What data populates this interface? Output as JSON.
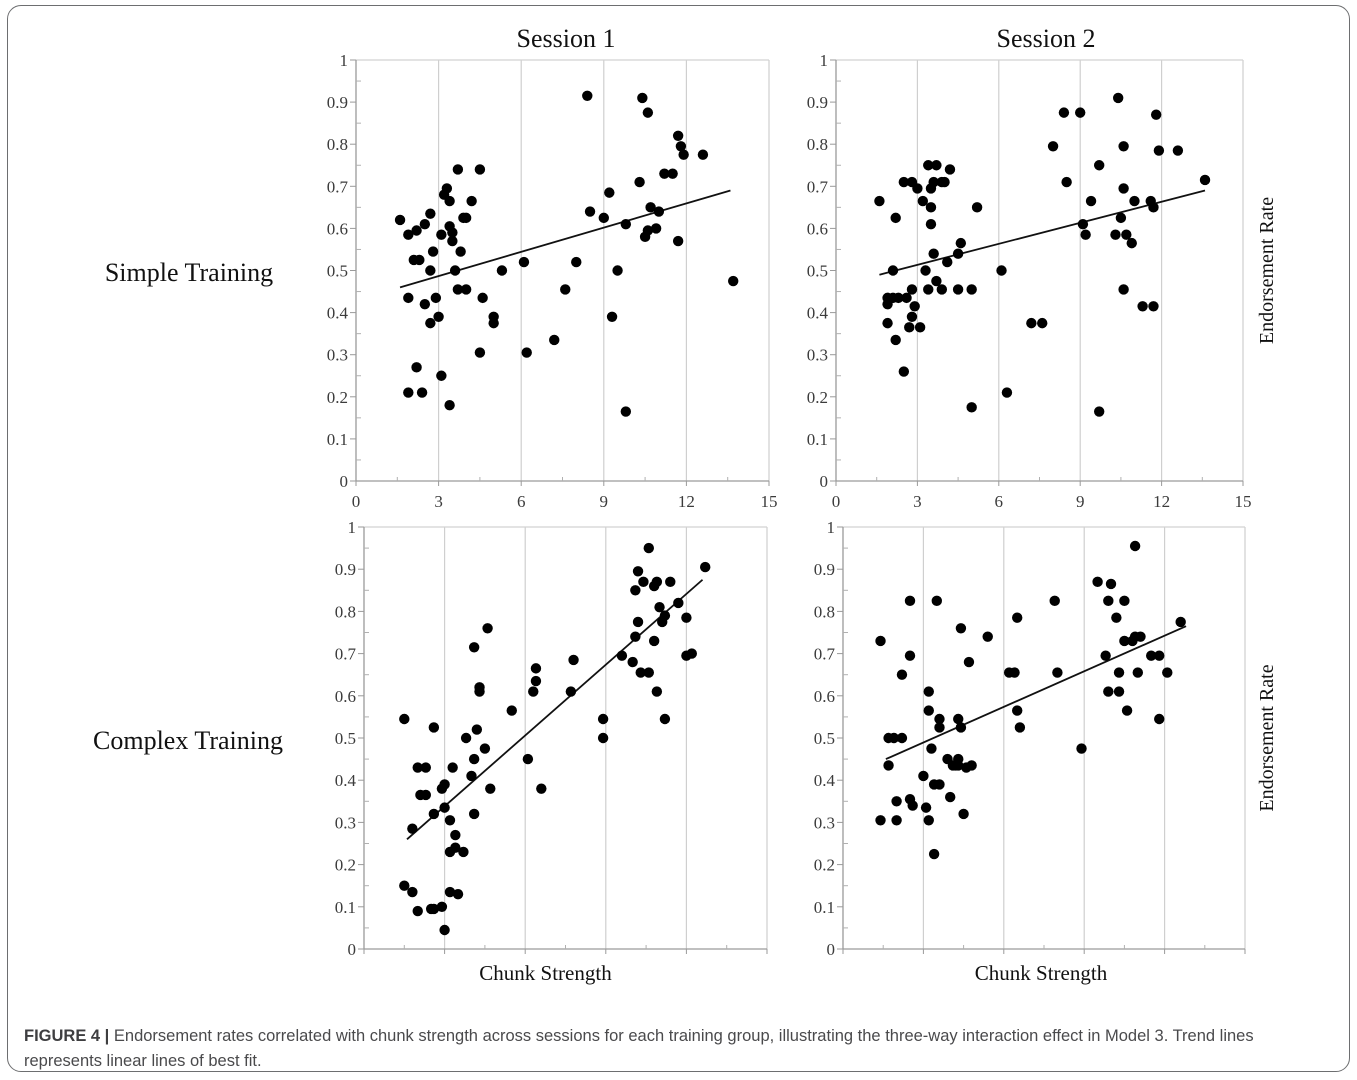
{
  "figure": {
    "columns": [
      "Session 1",
      "Session 2"
    ],
    "rows": [
      "Simple Training",
      "Complex Training"
    ],
    "caption_label": "FIGURE 4 |",
    "caption_text": " Endorsement rates correlated with chunk strength across sessions for each training group, illustrating the three-way interaction effect in Model 3. Trend lines represents linear lines of best fit."
  },
  "chart_data": [
    {
      "type": "scatter",
      "panel": "Simple Training / Session 1",
      "title": "Session 1",
      "xlabel": "",
      "ylabel": "",
      "row_label": "Simple Training",
      "xlim": [
        0,
        15
      ],
      "ylim": [
        0,
        1
      ],
      "xticks": [
        "0",
        "3",
        "6",
        "9",
        "12",
        "15"
      ],
      "yticks": [
        "0",
        "0.1",
        "0.2",
        "0.3",
        "0.4",
        "0.5",
        "0.6",
        "0.7",
        "0.8",
        "0.9",
        "1"
      ],
      "grid": true,
      "trendline": [
        [
          1.6,
          0.46
        ],
        [
          13.6,
          0.69
        ]
      ],
      "points": [
        [
          1.6,
          0.62
        ],
        [
          1.9,
          0.585
        ],
        [
          2.1,
          0.525
        ],
        [
          2.2,
          0.595
        ],
        [
          2.3,
          0.525
        ],
        [
          2.5,
          0.61
        ],
        [
          2.7,
          0.5
        ],
        [
          2.7,
          0.635
        ],
        [
          2.8,
          0.545
        ],
        [
          1.9,
          0.435
        ],
        [
          2.5,
          0.42
        ],
        [
          2.9,
          0.435
        ],
        [
          2.7,
          0.375
        ],
        [
          3.0,
          0.39
        ],
        [
          2.2,
          0.27
        ],
        [
          1.9,
          0.21
        ],
        [
          2.4,
          0.21
        ],
        [
          3.1,
          0.25
        ],
        [
          3.4,
          0.18
        ],
        [
          3.1,
          0.585
        ],
        [
          3.2,
          0.68
        ],
        [
          3.3,
          0.695
        ],
        [
          3.4,
          0.605
        ],
        [
          3.4,
          0.665
        ],
        [
          3.5,
          0.57
        ],
        [
          3.5,
          0.59
        ],
        [
          3.6,
          0.5
        ],
        [
          3.7,
          0.74
        ],
        [
          3.7,
          0.455
        ],
        [
          3.8,
          0.545
        ],
        [
          3.9,
          0.625
        ],
        [
          4.0,
          0.625
        ],
        [
          4.0,
          0.455
        ],
        [
          4.2,
          0.665
        ],
        [
          4.5,
          0.74
        ],
        [
          4.6,
          0.435
        ],
        [
          4.5,
          0.305
        ],
        [
          5.0,
          0.39
        ],
        [
          5.0,
          0.375
        ],
        [
          5.3,
          0.5
        ],
        [
          6.1,
          0.52
        ],
        [
          6.2,
          0.305
        ],
        [
          7.2,
          0.335
        ],
        [
          7.6,
          0.455
        ],
        [
          8.0,
          0.52
        ],
        [
          8.4,
          0.915
        ],
        [
          8.5,
          0.64
        ],
        [
          9.0,
          0.625
        ],
        [
          9.2,
          0.685
        ],
        [
          9.3,
          0.39
        ],
        [
          9.5,
          0.5
        ],
        [
          9.8,
          0.61
        ],
        [
          9.8,
          0.165
        ],
        [
          10.3,
          0.71
        ],
        [
          10.4,
          0.91
        ],
        [
          10.5,
          0.58
        ],
        [
          10.6,
          0.595
        ],
        [
          10.6,
          0.875
        ],
        [
          10.7,
          0.65
        ],
        [
          10.9,
          0.6
        ],
        [
          11.0,
          0.64
        ],
        [
          11.2,
          0.73
        ],
        [
          11.5,
          0.73
        ],
        [
          11.7,
          0.82
        ],
        [
          11.8,
          0.795
        ],
        [
          11.9,
          0.775
        ],
        [
          12.6,
          0.775
        ],
        [
          11.7,
          0.57
        ],
        [
          13.7,
          0.475
        ]
      ]
    },
    {
      "type": "scatter",
      "panel": "Simple Training / Session 2",
      "title": "Session 2",
      "xlabel": "",
      "ylabel": "Endorsement Rate",
      "xlim": [
        0,
        15
      ],
      "ylim": [
        0,
        1
      ],
      "xticks": [
        "0",
        "3",
        "6",
        "9",
        "12",
        "15"
      ],
      "yticks": [
        "0",
        "0.1",
        "0.2",
        "0.3",
        "0.4",
        "0.5",
        "0.6",
        "0.7",
        "0.8",
        "0.9",
        "1"
      ],
      "grid": true,
      "trendline": [
        [
          1.6,
          0.49
        ],
        [
          13.6,
          0.69
        ]
      ],
      "points": [
        [
          1.6,
          0.665
        ],
        [
          2.2,
          0.625
        ],
        [
          2.5,
          0.71
        ],
        [
          2.8,
          0.71
        ],
        [
          3.0,
          0.695
        ],
        [
          3.2,
          0.665
        ],
        [
          3.4,
          0.75
        ],
        [
          3.5,
          0.695
        ],
        [
          3.6,
          0.71
        ],
        [
          3.7,
          0.75
        ],
        [
          3.9,
          0.71
        ],
        [
          4.0,
          0.71
        ],
        [
          4.2,
          0.74
        ],
        [
          3.5,
          0.61
        ],
        [
          3.5,
          0.65
        ],
        [
          3.6,
          0.54
        ],
        [
          3.9,
          0.455
        ],
        [
          3.7,
          0.475
        ],
        [
          4.1,
          0.52
        ],
        [
          4.5,
          0.54
        ],
        [
          4.6,
          0.565
        ],
        [
          4.5,
          0.455
        ],
        [
          5.0,
          0.455
        ],
        [
          5.2,
          0.65
        ],
        [
          3.3,
          0.5
        ],
        [
          1.9,
          0.435
        ],
        [
          2.1,
          0.435
        ],
        [
          1.9,
          0.42
        ],
        [
          2.1,
          0.5
        ],
        [
          2.3,
          0.435
        ],
        [
          2.6,
          0.435
        ],
        [
          2.8,
          0.455
        ],
        [
          2.9,
          0.415
        ],
        [
          2.8,
          0.39
        ],
        [
          1.9,
          0.375
        ],
        [
          2.2,
          0.335
        ],
        [
          2.7,
          0.365
        ],
        [
          3.1,
          0.365
        ],
        [
          2.5,
          0.26
        ],
        [
          3.4,
          0.455
        ],
        [
          5.0,
          0.175
        ],
        [
          6.1,
          0.5
        ],
        [
          6.3,
          0.21
        ],
        [
          7.2,
          0.375
        ],
        [
          7.6,
          0.375
        ],
        [
          8.0,
          0.795
        ],
        [
          8.4,
          0.875
        ],
        [
          8.5,
          0.71
        ],
        [
          9.0,
          0.875
        ],
        [
          9.1,
          0.61
        ],
        [
          9.2,
          0.585
        ],
        [
          9.4,
          0.665
        ],
        [
          9.7,
          0.75
        ],
        [
          9.7,
          0.165
        ],
        [
          10.3,
          0.585
        ],
        [
          10.4,
          0.91
        ],
        [
          10.5,
          0.625
        ],
        [
          10.6,
          0.795
        ],
        [
          10.6,
          0.695
        ],
        [
          10.6,
          0.455
        ],
        [
          10.7,
          0.585
        ],
        [
          10.9,
          0.565
        ],
        [
          11.0,
          0.665
        ],
        [
          11.3,
          0.415
        ],
        [
          11.6,
          0.665
        ],
        [
          11.7,
          0.65
        ],
        [
          11.7,
          0.415
        ],
        [
          11.8,
          0.87
        ],
        [
          11.9,
          0.785
        ],
        [
          12.6,
          0.785
        ],
        [
          13.6,
          0.715
        ]
      ]
    },
    {
      "type": "scatter",
      "panel": "Complex Training / Session 1",
      "title": "",
      "xlabel": "Chunk Strength",
      "ylabel": "",
      "row_label": "Complex Training",
      "xlim": [
        0,
        15
      ],
      "ylim": [
        0,
        1
      ],
      "xticks": [],
      "yticks": [
        "0",
        "0.1",
        "0.2",
        "0.3",
        "0.4",
        "0.5",
        "0.6",
        "0.7",
        "0.8",
        "0.9",
        "1"
      ],
      "grid": true,
      "trendline": [
        [
          1.6,
          0.26
        ],
        [
          12.6,
          0.875
        ]
      ],
      "points": [
        [
          1.5,
          0.545
        ],
        [
          1.5,
          0.15
        ],
        [
          1.8,
          0.135
        ],
        [
          1.8,
          0.285
        ],
        [
          2.0,
          0.43
        ],
        [
          2.1,
          0.365
        ],
        [
          2.3,
          0.43
        ],
        [
          2.3,
          0.365
        ],
        [
          2.0,
          0.09
        ],
        [
          2.5,
          0.095
        ],
        [
          2.6,
          0.095
        ],
        [
          2.6,
          0.32
        ],
        [
          2.6,
          0.525
        ],
        [
          2.9,
          0.1
        ],
        [
          2.9,
          0.38
        ],
        [
          3.0,
          0.39
        ],
        [
          3.0,
          0.335
        ],
        [
          3.0,
          0.045
        ],
        [
          3.2,
          0.305
        ],
        [
          3.2,
          0.23
        ],
        [
          3.2,
          0.135
        ],
        [
          3.3,
          0.43
        ],
        [
          3.4,
          0.27
        ],
        [
          3.4,
          0.24
        ],
        [
          3.5,
          0.13
        ],
        [
          3.7,
          0.23
        ],
        [
          3.8,
          0.5
        ],
        [
          4.0,
          0.41
        ],
        [
          4.1,
          0.32
        ],
        [
          4.1,
          0.45
        ],
        [
          4.2,
          0.52
        ],
        [
          4.3,
          0.62
        ],
        [
          4.3,
          0.61
        ],
        [
          4.1,
          0.715
        ],
        [
          4.5,
          0.475
        ],
        [
          4.6,
          0.76
        ],
        [
          4.7,
          0.38
        ],
        [
          5.5,
          0.565
        ],
        [
          6.1,
          0.45
        ],
        [
          6.3,
          0.61
        ],
        [
          6.4,
          0.665
        ],
        [
          6.4,
          0.635
        ],
        [
          6.6,
          0.38
        ],
        [
          7.7,
          0.61
        ],
        [
          7.8,
          0.685
        ],
        [
          8.9,
          0.545
        ],
        [
          8.9,
          0.5
        ],
        [
          9.6,
          0.695
        ],
        [
          10.0,
          0.68
        ],
        [
          10.1,
          0.74
        ],
        [
          10.1,
          0.85
        ],
        [
          10.2,
          0.775
        ],
        [
          10.2,
          0.895
        ],
        [
          10.3,
          0.655
        ],
        [
          10.4,
          0.87
        ],
        [
          10.6,
          0.95
        ],
        [
          10.6,
          0.655
        ],
        [
          10.8,
          0.73
        ],
        [
          10.8,
          0.86
        ],
        [
          10.9,
          0.87
        ],
        [
          10.9,
          0.61
        ],
        [
          11.0,
          0.81
        ],
        [
          11.1,
          0.775
        ],
        [
          11.2,
          0.545
        ],
        [
          11.2,
          0.79
        ],
        [
          11.4,
          0.87
        ],
        [
          11.7,
          0.82
        ],
        [
          12.0,
          0.785
        ],
        [
          12.0,
          0.695
        ],
        [
          12.2,
          0.7
        ],
        [
          12.7,
          0.905
        ]
      ]
    },
    {
      "type": "scatter",
      "panel": "Complex Training / Session 2",
      "title": "",
      "xlabel": "Chunk Strength",
      "ylabel": "Endorsement Rate",
      "xlim": [
        0,
        15
      ],
      "ylim": [
        0,
        1
      ],
      "xticks": [],
      "yticks": [
        "0",
        "0.1",
        "0.2",
        "0.3",
        "0.4",
        "0.5",
        "0.6",
        "0.7",
        "0.8",
        "0.9",
        "1"
      ],
      "grid": true,
      "trendline": [
        [
          1.6,
          0.45
        ],
        [
          12.8,
          0.765
        ]
      ],
      "points": [
        [
          1.4,
          0.73
        ],
        [
          1.4,
          0.305
        ],
        [
          1.7,
          0.435
        ],
        [
          1.7,
          0.5
        ],
        [
          1.9,
          0.5
        ],
        [
          2.0,
          0.305
        ],
        [
          2.0,
          0.35
        ],
        [
          2.2,
          0.65
        ],
        [
          2.2,
          0.5
        ],
        [
          2.5,
          0.355
        ],
        [
          2.6,
          0.34
        ],
        [
          2.5,
          0.825
        ],
        [
          2.5,
          0.695
        ],
        [
          3.0,
          0.41
        ],
        [
          3.1,
          0.335
        ],
        [
          3.2,
          0.61
        ],
        [
          3.2,
          0.565
        ],
        [
          3.2,
          0.305
        ],
        [
          3.3,
          0.475
        ],
        [
          3.4,
          0.225
        ],
        [
          3.4,
          0.39
        ],
        [
          3.6,
          0.39
        ],
        [
          3.5,
          0.825
        ],
        [
          3.6,
          0.545
        ],
        [
          3.6,
          0.525
        ],
        [
          3.9,
          0.45
        ],
        [
          4.0,
          0.36
        ],
        [
          4.1,
          0.435
        ],
        [
          4.2,
          0.435
        ],
        [
          4.3,
          0.545
        ],
        [
          4.3,
          0.45
        ],
        [
          4.3,
          0.435
        ],
        [
          4.4,
          0.525
        ],
        [
          4.4,
          0.76
        ],
        [
          4.5,
          0.32
        ],
        [
          4.6,
          0.43
        ],
        [
          4.7,
          0.68
        ],
        [
          4.8,
          0.435
        ],
        [
          5.4,
          0.74
        ],
        [
          6.2,
          0.655
        ],
        [
          6.4,
          0.655
        ],
        [
          6.5,
          0.785
        ],
        [
          6.5,
          0.565
        ],
        [
          6.6,
          0.525
        ],
        [
          7.9,
          0.825
        ],
        [
          8.0,
          0.655
        ],
        [
          8.9,
          0.475
        ],
        [
          9.5,
          0.87
        ],
        [
          9.8,
          0.695
        ],
        [
          9.9,
          0.825
        ],
        [
          9.9,
          0.61
        ],
        [
          10.0,
          0.865
        ],
        [
          10.2,
          0.785
        ],
        [
          10.3,
          0.655
        ],
        [
          10.3,
          0.61
        ],
        [
          10.5,
          0.825
        ],
        [
          10.5,
          0.73
        ],
        [
          10.6,
          0.565
        ],
        [
          10.8,
          0.73
        ],
        [
          10.9,
          0.955
        ],
        [
          10.9,
          0.74
        ],
        [
          11.0,
          0.655
        ],
        [
          11.1,
          0.74
        ],
        [
          11.5,
          0.695
        ],
        [
          11.8,
          0.695
        ],
        [
          11.8,
          0.545
        ],
        [
          12.1,
          0.655
        ],
        [
          12.6,
          0.775
        ]
      ]
    }
  ]
}
